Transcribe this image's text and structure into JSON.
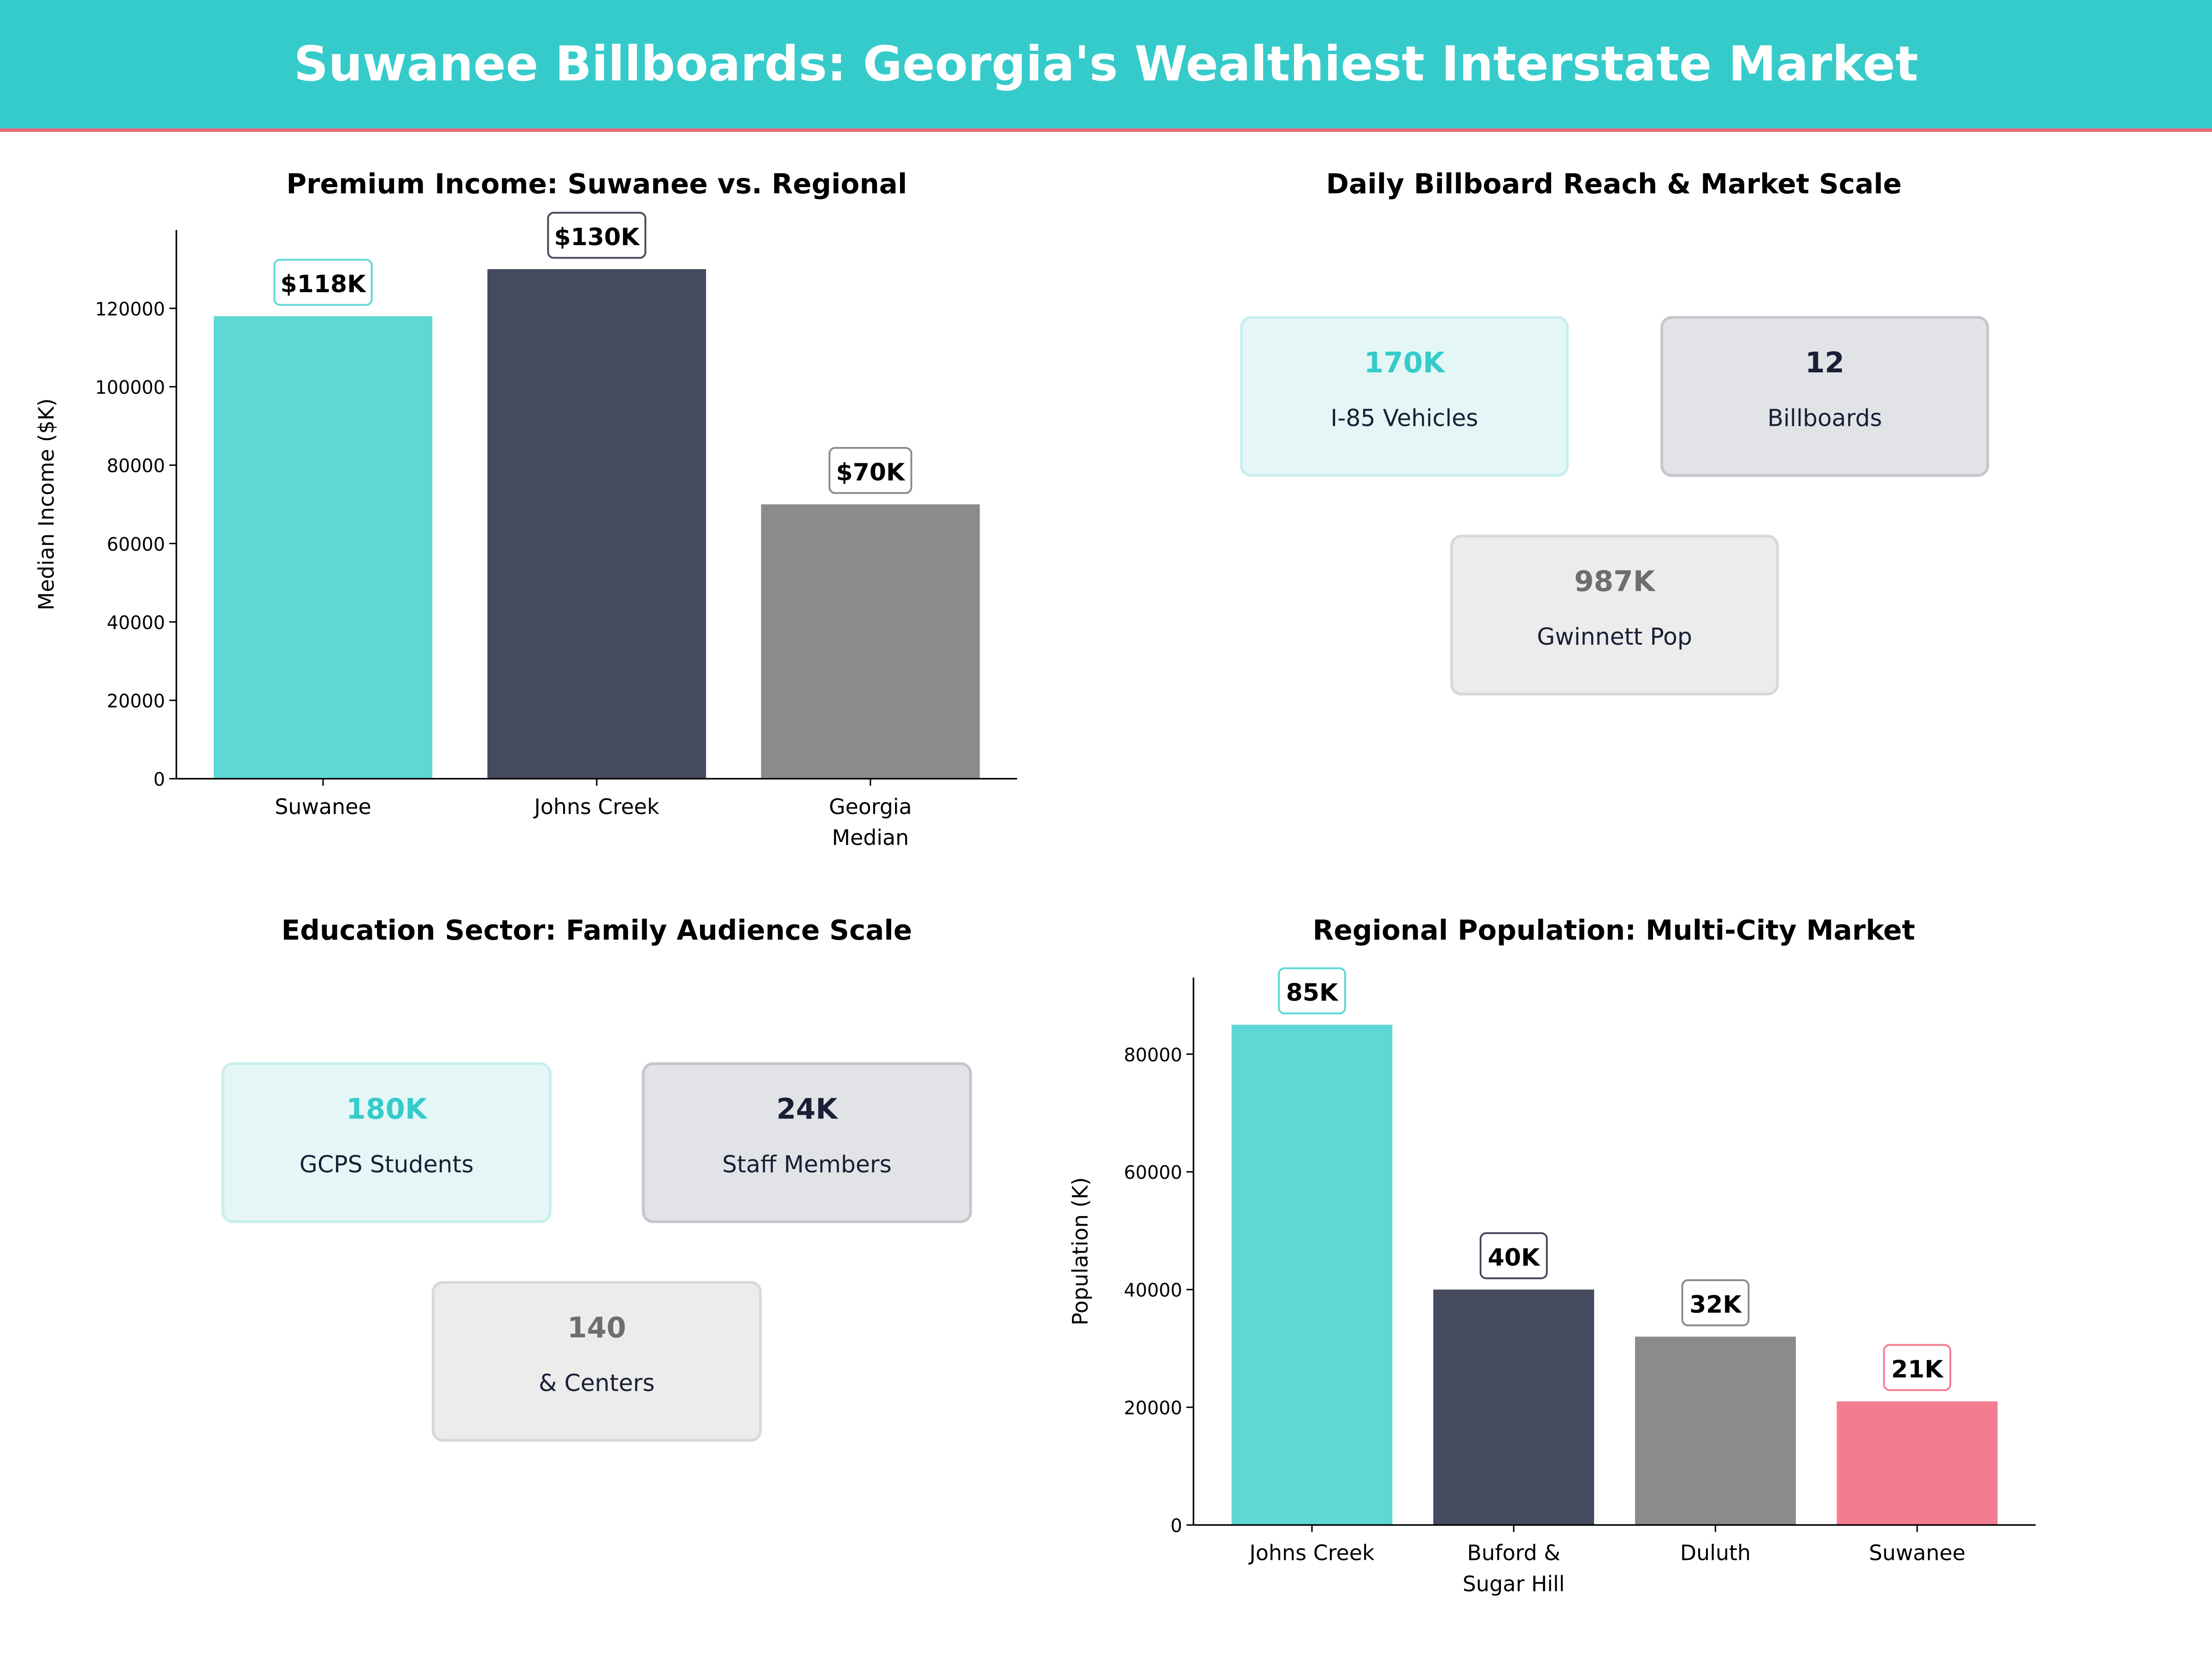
{
  "header": {
    "title": "Suwanee Billboards: Georgia's Wealthiest Interstate Market"
  },
  "colors": {
    "teal": "#36cbcb",
    "navy": "#464a5e",
    "gray": "#8b8b8b",
    "pink": "#f47c91",
    "accent_line": "#e8677b"
  },
  "chart_data": [
    {
      "type": "bar",
      "title": "Premium Income: Suwanee vs. Regional",
      "xlabel": "",
      "ylabel": "Median Income ($K)",
      "categories": [
        "Suwanee",
        "Johns Creek",
        "Georgia\nMedian"
      ],
      "values": [
        118000,
        130000,
        70000
      ],
      "data_labels": [
        "$118K",
        "$130K",
        "$70K"
      ],
      "bar_colors": [
        "#5dd8d4",
        "#464a5e",
        "#8b8b8b"
      ],
      "label_border_colors": [
        "#5dd8d4",
        "#464a5e",
        "#8b8b8b"
      ],
      "ylim": [
        0,
        140000
      ],
      "yticks": [
        0,
        20000,
        40000,
        60000,
        80000,
        100000,
        120000
      ],
      "grid": false
    },
    {
      "type": "bar",
      "title": "Regional Population: Multi-City Market",
      "xlabel": "",
      "ylabel": "Population (K)",
      "categories": [
        "Johns Creek",
        "Buford &\nSugar Hill",
        "Duluth",
        "Suwanee"
      ],
      "values": [
        85000,
        40000,
        32000,
        21000
      ],
      "data_labels": [
        "85K",
        "40K",
        "32K",
        "21K"
      ],
      "bar_colors": [
        "#5dd8d4",
        "#464a5e",
        "#8b8b8b",
        "#f47c91"
      ],
      "label_border_colors": [
        "#5dd8d4",
        "#464a5e",
        "#8b8b8b",
        "#f47c91"
      ],
      "ylim": [
        0,
        93000
      ],
      "yticks": [
        0,
        20000,
        40000,
        60000,
        80000
      ],
      "grid": false
    }
  ],
  "reach": {
    "title": "Daily Billboard Reach & Market Scale",
    "cards": [
      {
        "value": "170K",
        "label": "I-85 Vehicles"
      },
      {
        "value": "12",
        "label": "Billboards"
      },
      {
        "value": "987K",
        "label": "Gwinnett Pop"
      }
    ]
  },
  "education": {
    "title": "Education Sector: Family Audience Scale",
    "cards": [
      {
        "value": "180K",
        "label": "GCPS Students"
      },
      {
        "value": "24K",
        "label": "Staff Members"
      },
      {
        "value": "140",
        "label": "& Centers"
      }
    ]
  }
}
